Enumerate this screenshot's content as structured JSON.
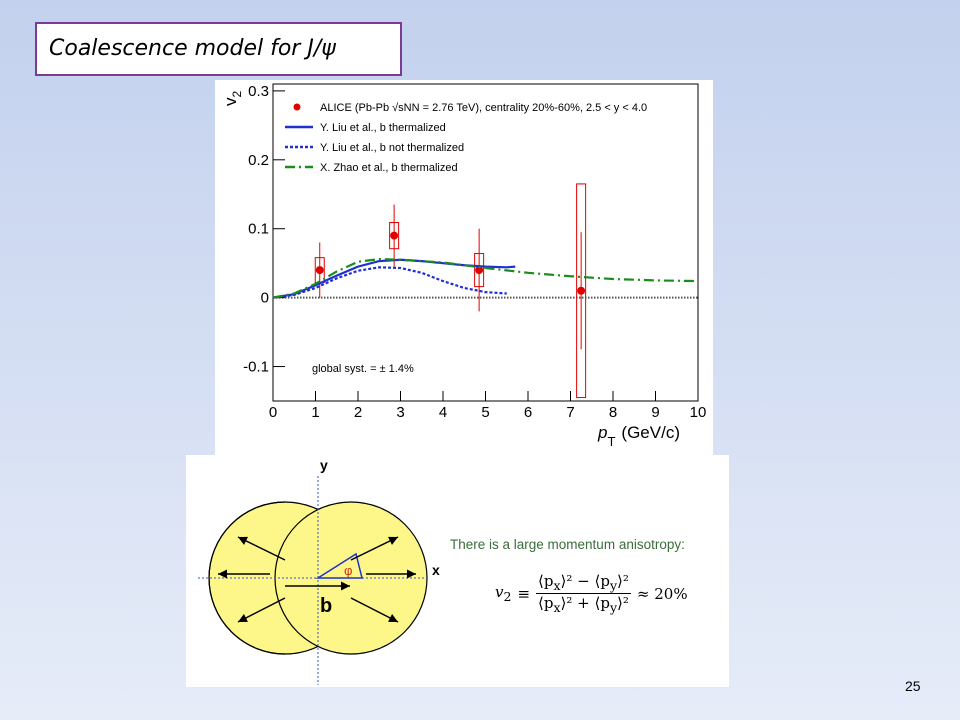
{
  "title": "Coalescence model for J/ψ",
  "page_number": "25",
  "chart_data": {
    "type": "line",
    "ylabel": {
      "text": "v",
      "sub": "2"
    },
    "xlabel": {
      "text": "p",
      "sub": "T",
      "unit": "(GeV/c)"
    },
    "xlim": [
      0,
      10
    ],
    "xticks": [
      0,
      1,
      2,
      3,
      4,
      5,
      6,
      7,
      8,
      9,
      10
    ],
    "ylim": [
      -0.15,
      0.31
    ],
    "yticks": [
      0.3,
      0.2,
      0.1,
      0,
      -0.1
    ],
    "annotation": "global syst. = ± 1.4%",
    "series": [
      {
        "name": "ALICE (Pb-Pb √sNN = 2.76 TeV), centrality 20%-60%, 2.5 < y < 4.0",
        "color": "#e00000",
        "style": "points",
        "x": [
          1.1,
          2.85,
          4.85,
          7.25
        ],
        "values": [
          0.04,
          0.09,
          0.04,
          0.01
        ],
        "errors": [
          0.04,
          0.045,
          0.06,
          0.085
        ],
        "syst": [
          0.018,
          0.019,
          0.024,
          0.155
        ]
      },
      {
        "name": "Y. Liu et al., b thermalized",
        "color": "#1f2fd0",
        "style": "solid",
        "x": [
          0,
          0.5,
          1,
          1.5,
          2,
          2.5,
          3,
          3.5,
          4,
          4.5,
          5,
          5.5,
          5.7
        ],
        "values": [
          0,
          0.005,
          0.018,
          0.032,
          0.045,
          0.053,
          0.055,
          0.053,
          0.05,
          0.047,
          0.045,
          0.044,
          0.045
        ]
      },
      {
        "name": "Y. Liu et al., b not thermalized",
        "color": "#1f2fd0",
        "style": "dotted",
        "x": [
          0,
          0.5,
          1,
          1.5,
          2,
          2.5,
          3,
          3.5,
          4,
          4.5,
          5,
          5.5
        ],
        "values": [
          0,
          0.004,
          0.014,
          0.028,
          0.039,
          0.044,
          0.043,
          0.036,
          0.024,
          0.014,
          0.008,
          0.006
        ]
      },
      {
        "name": "X. Zhao et al., b thermalized",
        "color": "#1a8c1a",
        "style": "dashdot",
        "x": [
          0,
          0.5,
          1,
          1.5,
          2,
          2.5,
          3,
          4,
          5,
          6,
          7,
          8,
          9,
          10
        ],
        "values": [
          0,
          0.006,
          0.02,
          0.038,
          0.052,
          0.056,
          0.055,
          0.051,
          0.043,
          0.036,
          0.031,
          0.027,
          0.025,
          0.024
        ]
      }
    ]
  },
  "diagram": {
    "y_label": "y",
    "x_label": "x",
    "b_label": "b",
    "phi_label": "φ",
    "text": "There is a large momentum anisotropy:",
    "formula": {
      "lhs": "v",
      "lhs_sub": "2",
      "equiv": "≡",
      "num": "⟨p<sub>x</sub>⟩² − ⟨p<sub>y</sub>⟩²",
      "den": "⟨p<sub>x</sub>⟩² + ⟨p<sub>y</sub>⟩²",
      "rhs": "≈ 20%"
    }
  }
}
